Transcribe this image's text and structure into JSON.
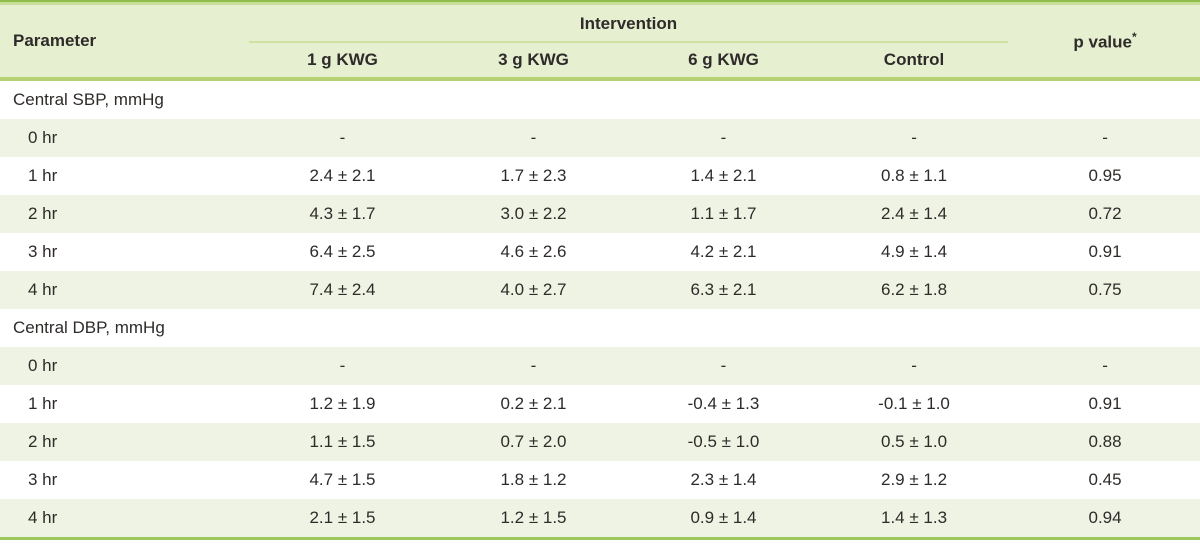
{
  "table": {
    "header": {
      "parameter": "Parameter",
      "intervention": "Intervention",
      "groups": [
        "1 g KWG",
        "3 g KWG",
        "6 g KWG",
        "Control"
      ],
      "p_value": "p value",
      "p_value_note": "*"
    },
    "sections": [
      {
        "title": "Central SBP, mmHg",
        "rows": [
          {
            "label": "0 hr",
            "values": [
              "-",
              "-",
              "-",
              "-"
            ],
            "p": "-"
          },
          {
            "label": "1 hr",
            "values": [
              "2.4 ± 2.1",
              "1.7 ± 2.3",
              "1.4 ± 2.1",
              "0.8 ± 1.1"
            ],
            "p": "0.95"
          },
          {
            "label": "2 hr",
            "values": [
              "4.3 ± 1.7",
              "3.0 ± 2.2",
              "1.1 ± 1.7",
              "2.4 ± 1.4"
            ],
            "p": "0.72"
          },
          {
            "label": "3 hr",
            "values": [
              "6.4 ± 2.5",
              "4.6 ± 2.6",
              "4.2 ± 2.1",
              "4.9 ± 1.4"
            ],
            "p": "0.91"
          },
          {
            "label": "4 hr",
            "values": [
              "7.4 ± 2.4",
              "4.0 ± 2.7",
              "6.3 ± 2.1",
              "6.2 ± 1.8"
            ],
            "p": "0.75"
          }
        ]
      },
      {
        "title": "Central DBP, mmHg",
        "rows": [
          {
            "label": "0 hr",
            "values": [
              "-",
              "-",
              "-",
              "-"
            ],
            "p": "-"
          },
          {
            "label": "1 hr",
            "values": [
              "1.2 ± 1.9",
              "0.2 ± 2.1",
              "-0.4 ± 1.3",
              "-0.1 ± 1.0"
            ],
            "p": "0.91"
          },
          {
            "label": "2 hr",
            "values": [
              "1.1 ± 1.5",
              "0.7 ± 2.0",
              "-0.5 ± 1.0",
              "0.5 ± 1.0"
            ],
            "p": "0.88"
          },
          {
            "label": "3 hr",
            "values": [
              "4.7 ± 1.5",
              "1.8 ± 1.2",
              "2.3 ± 1.4",
              "2.9 ± 1.2"
            ],
            "p": "0.45"
          },
          {
            "label": "4 hr",
            "values": [
              "2.1 ± 1.5",
              "1.2 ± 1.5",
              "0.9 ± 1.4",
              "1.4 ± 1.3"
            ],
            "p": "0.94"
          }
        ]
      }
    ]
  },
  "colors": {
    "top_rule_dark": "#8fbd4e",
    "top_rule_light": "#c8dd97",
    "header_bg": "#e7efd1",
    "header_rule": "#b5d172",
    "intervention_rule": "#cfe2a2",
    "stripe_bg": "#eff3e4",
    "bottom_rule": "#9cc75a",
    "text": "#2e2b29"
  }
}
